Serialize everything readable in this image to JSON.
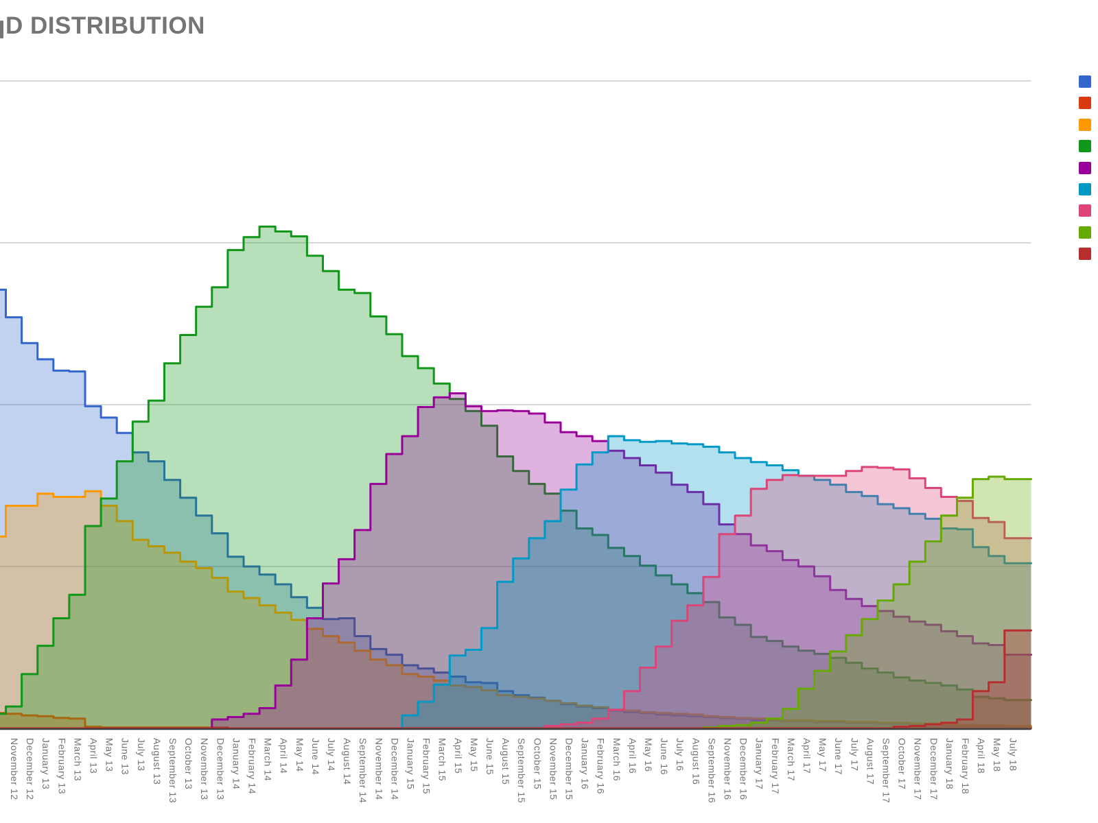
{
  "page": {
    "title_visible": "D DISTRIBUTION",
    "title_note": "title cropped at left edge of screenshot"
  },
  "colors": {
    "title_text": "#757575",
    "axis_label_text": "#757575",
    "gridline": "#cccccc",
    "axis_baseline": "#3d4043",
    "background": "#ffffff"
  },
  "chart_data": {
    "type": "area",
    "stepped": true,
    "title": "D DISTRIBUTION",
    "xlabel": "",
    "ylabel": "",
    "y_axis": {
      "min": 0,
      "gridline_values": [
        20,
        40,
        60,
        80
      ],
      "unit": "%",
      "labels_visible": false
    },
    "legend": {
      "position": "right",
      "labels_visible": false,
      "labels_note": "legend text cropped off right edge; only color swatches visible"
    },
    "grid": true,
    "area_opacity": 0.3,
    "lead_in_months": 2,
    "lead_in_note": "first 2 values of each series belong to months cropped off the left edge (no visible labels)",
    "x_labels": [
      "November 12",
      "December 12",
      "January 13",
      "February 13",
      "March 13",
      "April 13",
      "May 13",
      "June 13",
      "July 13",
      "August 13",
      "September 13",
      "October 13",
      "November 13",
      "December 13",
      "January 14",
      "February 14",
      "March 14",
      "April 14",
      "May 14",
      "June 14",
      "July 14",
      "August 14",
      "September 14",
      "November 14",
      "December 14",
      "January 15",
      "February 15",
      "March 15",
      "April 15",
      "May 15",
      "June 15",
      "August 15",
      "September 15",
      "October 15",
      "November 15",
      "December 15",
      "January 16",
      "February 16",
      "March 16",
      "April 16",
      "May 16",
      "June 16",
      "July 16",
      "August 16",
      "September 16",
      "November 16",
      "December 16",
      "January 17",
      "February 17",
      "March 17",
      "April 17",
      "May 17",
      "June 17",
      "July 17",
      "August 17",
      "September 17",
      "October 17",
      "November 17",
      "December 17",
      "January 18",
      "February 18",
      "April 18",
      "May 18",
      "July 18"
    ],
    "series": [
      {
        "name": "series-1-blue",
        "color": "#3366CC",
        "values": [
          55.8,
          54.2,
          50.8,
          47.6,
          45.6,
          44.2,
          44.1,
          39.8,
          38.4,
          36.5,
          34.1,
          33.0,
          30.7,
          28.5,
          26.3,
          24.1,
          21.2,
          20.0,
          19.0,
          17.8,
          16.2,
          14.9,
          13.5,
          13.6,
          11.4,
          9.8,
          9.1,
          7.8,
          7.4,
          6.9,
          6.4,
          5.7,
          5.6,
          4.6,
          4.1,
          3.8,
          3.4,
          3.0,
          2.7,
          2.5,
          2.2,
          2.0,
          1.9,
          1.7,
          1.6,
          1.5,
          1.4,
          1.3,
          1.2,
          1.0,
          1.0,
          0.9,
          0.9,
          0.8,
          0.8,
          0.7,
          0.7,
          0.6,
          0.6,
          0.5,
          0.5,
          0.4,
          0.3,
          0.3,
          0.3,
          0.2
        ]
      },
      {
        "name": "series-2-red",
        "color": "#DC3912",
        "values": [
          2.1,
          1.9,
          1.8,
          1.6,
          1.5,
          1.3,
          1.2,
          0.2,
          0.1,
          0.1,
          0.1,
          0.1,
          0.1,
          0.1,
          0.1,
          0.1,
          0,
          0,
          0,
          0,
          0,
          0,
          0,
          0,
          0,
          0,
          0,
          0,
          0,
          0,
          0,
          0,
          0,
          0,
          0,
          0,
          0,
          0,
          0,
          0,
          0,
          0,
          0,
          0,
          0,
          0,
          0,
          0,
          0,
          0,
          0,
          0,
          0,
          0,
          0,
          0,
          0,
          0,
          0,
          0,
          0,
          0,
          0,
          0,
          0,
          0
        ]
      },
      {
        "name": "series-3-orange",
        "color": "#FF9900",
        "values": [
          22.5,
          23.7,
          27.5,
          27.5,
          29.0,
          28.6,
          28.6,
          29.3,
          27.5,
          25.6,
          23.3,
          22.5,
          21.7,
          20.6,
          19.8,
          18.6,
          16.9,
          16.1,
          15.2,
          14.3,
          13.4,
          12.3,
          11.4,
          10.6,
          9.6,
          8.5,
          7.8,
          6.7,
          6.4,
          5.9,
          5.3,
          5.1,
          4.7,
          4.1,
          3.9,
          3.7,
          3.4,
          3.1,
          2.8,
          2.6,
          2.3,
          2.2,
          2.0,
          1.9,
          1.8,
          1.7,
          1.5,
          1.4,
          1.3,
          1.2,
          1.1,
          1.0,
          1.0,
          0.9,
          0.9,
          0.8,
          0.8,
          0.7,
          0.7,
          0.6,
          0.6,
          0.5,
          0.4,
          0.4,
          0.4,
          0.3
        ]
      },
      {
        "name": "series-4-green",
        "color": "#109618",
        "values": [
          1.2,
          1.8,
          2.7,
          6.7,
          10.2,
          13.6,
          16.5,
          25.0,
          28.4,
          33.0,
          37.9,
          40.5,
          45.1,
          48.6,
          52.1,
          54.5,
          59.1,
          60.7,
          62.0,
          61.4,
          60.8,
          58.4,
          56.5,
          54.2,
          53.8,
          50.9,
          48.7,
          46.0,
          44.5,
          42.6,
          40.7,
          39.2,
          37.4,
          33.6,
          31.8,
          30.2,
          29.0,
          26.9,
          24.7,
          23.9,
          22.3,
          21.3,
          20.1,
          18.9,
          17.8,
          16.7,
          15.6,
          13.7,
          12.8,
          11.3,
          10.8,
          10.1,
          9.6,
          9.2,
          8.7,
          8.1,
          7.4,
          6.9,
          6.3,
          5.9,
          5.6,
          5.3,
          4.8,
          3.9,
          3.7,
          3.5
        ]
      },
      {
        "name": "series-5-purple",
        "color": "#990099",
        "values": [
          0,
          0,
          0,
          0,
          0,
          0,
          0,
          0,
          0,
          0,
          0,
          0,
          0,
          0,
          0,
          1.1,
          1.4,
          1.8,
          2.5,
          5.3,
          8.5,
          13.6,
          17.9,
          20.9,
          24.5,
          30.2,
          33.9,
          36.1,
          39.7,
          40.9,
          41.4,
          39.8,
          39.2,
          39.3,
          39.2,
          38.9,
          37.8,
          36.6,
          36.1,
          35.5,
          34.3,
          33.4,
          32.5,
          31.6,
          30.1,
          29.2,
          27.7,
          25.2,
          24.0,
          22.6,
          21.9,
          20.8,
          20.0,
          18.8,
          17.1,
          16.0,
          15.1,
          14.5,
          13.8,
          13.2,
          12.8,
          12.0,
          11.4,
          10.5,
          10.3,
          9.1
        ]
      },
      {
        "name": "series-6-cyan",
        "color": "#0099C6",
        "values": [
          0,
          0,
          0,
          0,
          0,
          0,
          0,
          0,
          0,
          0,
          0,
          0,
          0,
          0,
          0,
          0,
          0,
          0,
          0,
          0,
          0,
          0,
          0,
          0,
          0,
          0,
          0,
          1.6,
          3.3,
          5.4,
          9.0,
          9.7,
          12.4,
          18.1,
          21.0,
          23.5,
          25.6,
          29.5,
          32.6,
          34.1,
          36.1,
          35.6,
          35.4,
          35.5,
          35.2,
          35.1,
          34.8,
          34.1,
          33.4,
          32.9,
          32.5,
          31.9,
          31.2,
          30.7,
          30.1,
          29.2,
          28.7,
          27.7,
          27.2,
          26.5,
          25.9,
          24.7,
          24.6,
          22.4,
          21.3,
          20.4
        ]
      },
      {
        "name": "series-7-pink",
        "color": "#DD4477",
        "values": [
          0,
          0,
          0,
          0,
          0,
          0,
          0,
          0,
          0,
          0,
          0,
          0,
          0,
          0,
          0,
          0,
          0,
          0,
          0,
          0,
          0,
          0,
          0,
          0,
          0,
          0,
          0,
          0,
          0,
          0,
          0,
          0,
          0,
          0,
          0,
          0,
          0.3,
          0.5,
          0.7,
          1.2,
          2.3,
          4.6,
          7.5,
          10.1,
          13.3,
          15.2,
          18.7,
          24.0,
          26.3,
          29.6,
          30.7,
          31.3,
          31.2,
          31.2,
          31.2,
          31.8,
          32.3,
          32.2,
          32.0,
          30.9,
          29.7,
          28.6,
          28.1,
          26.0,
          25.5,
          23.5
        ]
      },
      {
        "name": "series-8-light-green",
        "color": "#66AA00",
        "values": [
          0,
          0,
          0,
          0,
          0,
          0,
          0,
          0,
          0,
          0,
          0,
          0,
          0,
          0,
          0,
          0,
          0,
          0,
          0,
          0,
          0,
          0,
          0,
          0,
          0,
          0,
          0,
          0,
          0,
          0,
          0,
          0,
          0,
          0,
          0,
          0,
          0,
          0,
          0,
          0,
          0,
          0,
          0,
          0,
          0,
          0,
          0.1,
          0.3,
          0.4,
          0.7,
          1.2,
          2.4,
          4.9,
          7.1,
          9.5,
          11.5,
          13.5,
          15.8,
          17.8,
          20.6,
          23.1,
          26.3,
          28.5,
          30.8,
          31.1,
          30.8
        ]
      },
      {
        "name": "series-9-dark-red",
        "color": "#B82E2E",
        "values": [
          0,
          0,
          0,
          0,
          0,
          0,
          0,
          0,
          0,
          0,
          0,
          0,
          0,
          0,
          0,
          0,
          0,
          0,
          0,
          0,
          0,
          0,
          0,
          0,
          0,
          0,
          0,
          0,
          0,
          0,
          0,
          0,
          0,
          0,
          0,
          0,
          0,
          0,
          0,
          0,
          0,
          0,
          0,
          0,
          0,
          0,
          0,
          0,
          0,
          0,
          0,
          0,
          0,
          0,
          0,
          0,
          0,
          0,
          0.2,
          0.3,
          0.5,
          0.7,
          1.1,
          4.6,
          5.7,
          12.1
        ]
      }
    ]
  }
}
